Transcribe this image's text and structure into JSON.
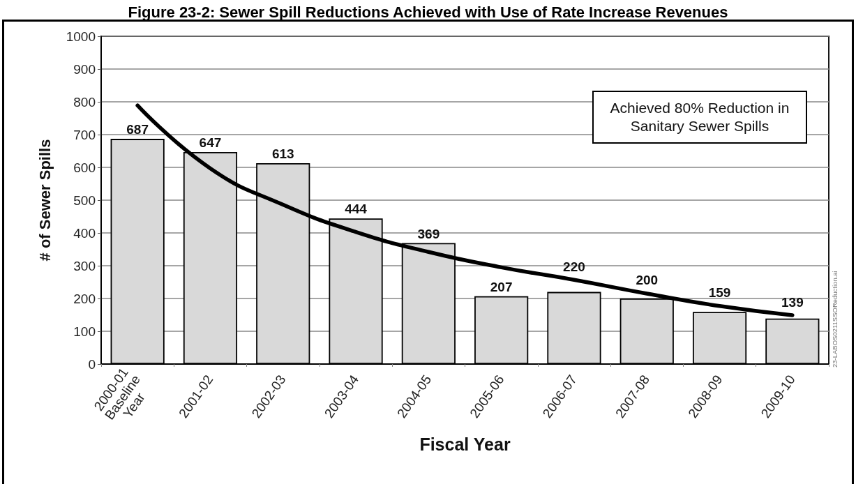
{
  "chart_data": {
    "type": "bar",
    "title": "Figure 23-2: Sewer Spill Reductions Achieved with Use of Rate Increase Revenues",
    "xlabel": "Fiscal Year",
    "ylabel": "# of Sewer Spills",
    "categories": [
      "2000-01 Baseline Year",
      "2001-02",
      "2002-03",
      "2003-04",
      "2004-05",
      "2005-06",
      "2006-07",
      "2007-08",
      "2008-09",
      "2009-10"
    ],
    "series": [
      {
        "color": "#d9d9d9",
        "values": [
          687,
          647,
          613,
          444,
          369,
          207,
          220,
          200,
          159,
          139
        ],
        "value_labels": [
          "687",
          "647",
          "613",
          "444",
          "369",
          "207",
          "220",
          "200",
          "159",
          "139"
        ]
      },
      {
        "type": "line",
        "color": "#000000",
        "values": [
          789,
          597,
          486,
          403,
          342,
          295,
          257,
          215,
          177,
          149
        ]
      }
    ],
    "ylim": [
      0,
      1000
    ],
    "yticks": [
      0,
      100,
      200,
      300,
      400,
      500,
      600,
      700,
      800,
      900,
      1000
    ],
    "grid": "y",
    "marker": "none",
    "line_style": "solid",
    "annotations": [
      "Achieved 80% Reduction in Sanitary Sewer Spills",
      "23-LABOS0211SSOReduction.ai"
    ]
  }
}
